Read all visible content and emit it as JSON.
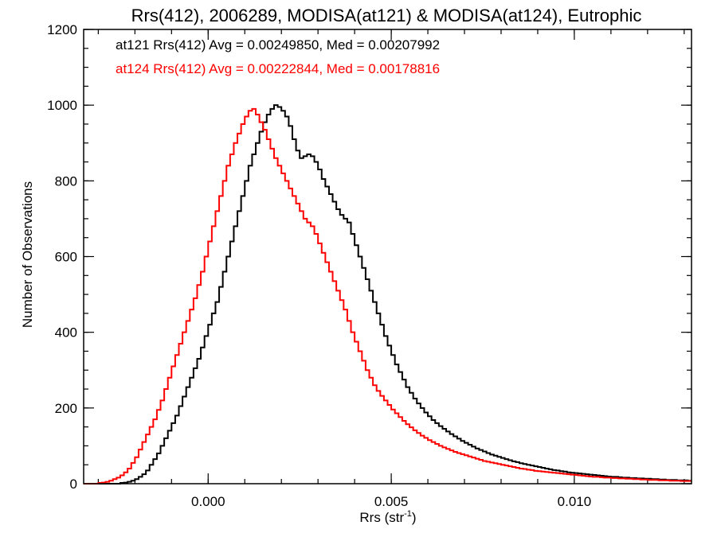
{
  "chart_data": {
    "type": "histogram",
    "title": "Rrs(412), 2006289, MODISA(at121) & MODISA(at124), Eutrophic",
    "xlabel_main": "Rrs (str",
    "xlabel_sup": "-1",
    "xlabel_close": ")",
    "ylabel": "Number of Observations",
    "xlim": [
      -0.0034,
      0.0132
    ],
    "ylim": [
      0,
      1200
    ],
    "x_ticks": [
      0.0,
      0.005,
      0.01
    ],
    "x_tick_labels": [
      "0.000",
      "0.005",
      "0.010"
    ],
    "x_minor_step": 0.001,
    "y_ticks": [
      0,
      200,
      400,
      600,
      800,
      1000,
      1200
    ],
    "y_tick_labels": [
      "0",
      "200",
      "400",
      "600",
      "800",
      "1000",
      "1200"
    ],
    "y_minor_step": 50,
    "bin_width": 0.0001,
    "x_start": -0.0034,
    "annotations": [
      {
        "text": "at121 Rrs(412) Avg = 0.00249850, Med = 0.00207992",
        "color": "#000000"
      },
      {
        "text": "at124 Rrs(412) Avg = 0.00222844, Med = 0.00178816",
        "color": "#ff0000"
      }
    ],
    "series": [
      {
        "color": "#000000",
        "counts": [
          0,
          0,
          0,
          0,
          0,
          0,
          0,
          0,
          0,
          0,
          2,
          3,
          5,
          8,
          12,
          18,
          25,
          35,
          50,
          65,
          80,
          100,
          120,
          140,
          160,
          180,
          205,
          230,
          255,
          280,
          305,
          330,
          360,
          390,
          420,
          450,
          480,
          520,
          560,
          600,
          640,
          680,
          720,
          760,
          800,
          840,
          870,
          900,
          930,
          955,
          975,
          990,
          1000,
          995,
          985,
          970,
          945,
          910,
          880,
          860,
          865,
          870,
          865,
          850,
          830,
          805,
          785,
          765,
          745,
          725,
          710,
          700,
          690,
          660,
          630,
          600,
          570,
          540,
          510,
          480,
          450,
          420,
          390,
          365,
          340,
          315,
          295,
          275,
          255,
          240,
          225,
          212,
          200,
          188,
          178,
          168,
          160,
          152,
          145,
          138,
          131,
          125,
          119,
          113,
          108,
          103,
          98,
          93,
          89,
          85,
          81,
          77,
          74,
          71,
          68,
          65,
          62,
          59,
          57,
          54,
          52,
          50,
          48,
          46,
          44,
          42,
          40,
          38,
          36,
          35,
          33,
          32,
          30,
          29,
          28,
          27,
          26,
          25,
          24,
          23,
          22,
          21,
          20,
          19,
          18,
          18,
          17,
          16,
          16,
          15,
          15,
          14,
          14,
          13,
          13,
          12,
          12,
          11,
          11,
          10,
          10,
          10,
          9,
          9,
          9,
          8,
          8,
          8,
          7,
          7
        ]
      },
      {
        "color": "#ff0000",
        "counts": [
          0,
          0,
          0,
          0,
          2,
          3,
          5,
          8,
          12,
          16,
          22,
          30,
          40,
          55,
          70,
          90,
          110,
          130,
          150,
          170,
          195,
          220,
          250,
          280,
          310,
          340,
          370,
          400,
          430,
          460,
          490,
          525,
          560,
          600,
          640,
          680,
          720,
          760,
          800,
          840,
          870,
          900,
          925,
          950,
          970,
          985,
          990,
          975,
          955,
          935,
          910,
          885,
          860,
          840,
          820,
          800,
          780,
          760,
          740,
          720,
          700,
          690,
          680,
          660,
          635,
          610,
          585,
          560,
          535,
          510,
          485,
          460,
          430,
          400,
          375,
          350,
          325,
          300,
          280,
          260,
          245,
          232,
          220,
          208,
          196,
          186,
          176,
          166,
          157,
          149,
          141,
          134,
          127,
          121,
          115,
          110,
          105,
          100,
          96,
          92,
          88,
          84,
          81,
          78,
          75,
          72,
          69,
          66,
          63,
          60,
          58,
          56,
          54,
          52,
          50,
          48,
          46,
          44,
          42,
          40,
          39,
          37,
          36,
          34,
          33,
          32,
          31,
          30,
          29,
          28,
          27,
          26,
          25,
          24,
          23,
          22,
          21,
          20,
          19,
          18,
          18,
          17,
          16,
          16,
          15,
          15,
          14,
          14,
          13,
          13,
          12,
          12,
          11,
          11,
          10,
          10,
          10,
          9,
          9,
          9,
          8,
          8,
          8,
          7,
          7,
          7
        ]
      }
    ]
  }
}
